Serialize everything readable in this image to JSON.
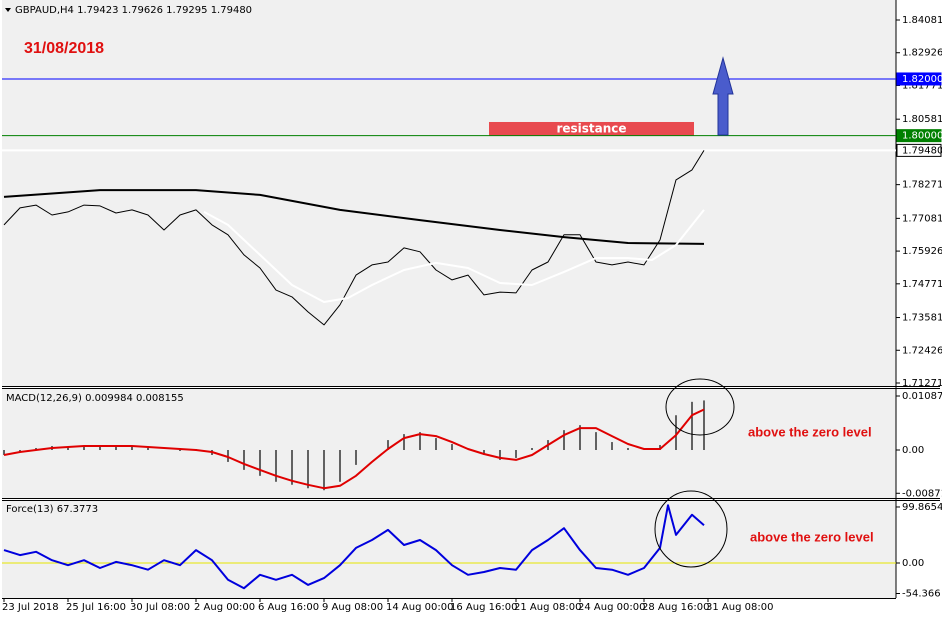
{
  "chart_data": [
    {
      "type": "line",
      "title": "GBPAUD,H4 1.79423 1.79626 1.79295 1.79480",
      "date_label": "31/08/2018",
      "xlim": [
        -0.5,
        223
      ],
      "ylim": [
        1.71165,
        1.84787
      ],
      "yticks": [
        1.84081,
        1.82926,
        1.81771,
        1.80581,
        1.78271,
        1.77081,
        1.75926,
        1.74771,
        1.73581,
        1.72426,
        1.71271
      ],
      "levels": [
        {
          "value": 1.82,
          "label": "1.82000",
          "color": "#0000ff"
        },
        {
          "value": 1.8,
          "label": "1.80000",
          "color": "#008000"
        },
        {
          "value": 1.7948,
          "label": "1.79480",
          "color": "#ffffff"
        }
      ],
      "resistance_zone": {
        "label": "resistance",
        "color": "#e84a4f",
        "xlim": [
          121.25,
          172.5
        ],
        "ylim": [
          1.8,
          1.80482
        ]
      },
      "series": [
        {
          "style": "line",
          "color": "#000000",
          "width": 1,
          "x": [
            0,
            4,
            8,
            12,
            16,
            20,
            24,
            28,
            32,
            36,
            40,
            44,
            48,
            52,
            56,
            60,
            64,
            68,
            72,
            76,
            80,
            84,
            88,
            92,
            96,
            100,
            104,
            108,
            112,
            116,
            120,
            124,
            128,
            132,
            136,
            140,
            144,
            148,
            152,
            156,
            160,
            164,
            168,
            172,
            175
          ],
          "values": [
            1.7685,
            1.7745,
            1.7755,
            1.772,
            1.7731,
            1.7755,
            1.7752,
            1.7727,
            1.7738,
            1.772,
            1.7667,
            1.772,
            1.7738,
            1.7685,
            1.765,
            1.7579,
            1.7533,
            1.7455,
            1.7431,
            1.7378,
            1.7332,
            1.7403,
            1.7508,
            1.7544,
            1.7554,
            1.7604,
            1.759,
            1.7526,
            1.7491,
            1.7508,
            1.7438,
            1.7448,
            1.7445,
            1.7526,
            1.7554,
            1.765,
            1.765,
            1.7554,
            1.7544,
            1.7554,
            1.7544,
            1.7632,
            1.7844,
            1.7879,
            1.7948
          ]
        },
        {
          "style": "line",
          "color": "#000000",
          "width": 2,
          "x": [
            0,
            24,
            48,
            64,
            84,
            104,
            124,
            140,
            156,
            175
          ],
          "values": [
            1.7784,
            1.7808,
            1.7808,
            1.7791,
            1.7738,
            1.7702,
            1.7667,
            1.7642,
            1.7621,
            1.7618
          ]
        },
        {
          "style": "line",
          "color": "#ffffff",
          "width": 2,
          "x": [
            50,
            56,
            64,
            72,
            80,
            86,
            92,
            100,
            108,
            116,
            124,
            132,
            140,
            148,
            156,
            162,
            168,
            175
          ],
          "values": [
            1.7731,
            1.7685,
            1.7579,
            1.7473,
            1.7413,
            1.7427,
            1.7473,
            1.7526,
            1.7551,
            1.7533,
            1.748,
            1.7473,
            1.7519,
            1.7568,
            1.7568,
            1.7561,
            1.7614,
            1.7738
          ]
        }
      ]
    },
    {
      "type": "combo",
      "title": "MACD(12,26,9) 0.009984 0.008155",
      "annotation": "above the zero level",
      "xlim": [
        -0.5,
        223
      ],
      "ylim": [
        -0.009666,
        0.012485
      ],
      "yticks": [
        0.010874,
        {
          "value": 0,
          "label": "0.00"
        },
        -0.008715
      ],
      "series": [
        {
          "style": "histogram",
          "color": "#333333",
          "width": 1.5,
          "x": [
            0,
            4,
            8,
            12,
            16,
            20,
            24,
            28,
            32,
            36,
            40,
            44,
            48,
            52,
            56,
            60,
            64,
            68,
            72,
            76,
            80,
            84,
            88,
            92,
            96,
            100,
            104,
            108,
            112,
            116,
            120,
            124,
            128,
            132,
            136,
            140,
            144,
            148,
            152,
            156,
            160,
            164,
            168,
            172,
            175
          ],
          "values": [
            -0.001,
            -0.0004,
            0.0004,
            0.0008,
            0.0006,
            0.0008,
            0.0008,
            0.0006,
            0.0008,
            0.0004,
            0,
            -0.0002,
            0.0002,
            -0.001,
            -0.0024,
            -0.004,
            -0.0052,
            -0.0064,
            -0.007,
            -0.0077,
            -0.0081,
            -0.0064,
            -0.003,
            0,
            0.002,
            0.0032,
            0.0036,
            0.0024,
            0.0012,
            0,
            -0.001,
            -0.002,
            -0.0016,
            0.0004,
            0.002,
            0.004,
            0.005,
            0.0036,
            0.0016,
            0.0004,
            0,
            0.001,
            0.007,
            0.0097,
            0.009984
          ]
        },
        {
          "style": "line",
          "color": "#e00000",
          "width": 2,
          "x": [
            0,
            4,
            8,
            12,
            16,
            20,
            24,
            28,
            32,
            36,
            40,
            44,
            48,
            52,
            56,
            60,
            64,
            68,
            72,
            76,
            80,
            84,
            88,
            92,
            96,
            100,
            104,
            108,
            112,
            116,
            120,
            124,
            128,
            132,
            136,
            140,
            144,
            148,
            152,
            156,
            160,
            164,
            168,
            172,
            175
          ],
          "values": [
            -0.001,
            -0.0004,
            0,
            0.0004,
            0.0006,
            0.0008,
            0.0008,
            0.0008,
            0.0008,
            0.0006,
            0.0004,
            0.0002,
            0,
            -0.0004,
            -0.0014,
            -0.0028,
            -0.004,
            -0.0052,
            -0.0062,
            -0.007,
            -0.0077,
            -0.0072,
            -0.0052,
            -0.0024,
            0.0002,
            0.0024,
            0.0032,
            0.0028,
            0.0016,
            0.0002,
            -0.0008,
            -0.0016,
            -0.002,
            -0.001,
            0.001,
            0.003,
            0.0044,
            0.0044,
            0.0028,
            0.0012,
            0.0002,
            0.0002,
            0.003,
            0.007,
            0.008155
          ]
        }
      ]
    },
    {
      "type": "line",
      "title": "Force(13) 67.3773",
      "annotation": "above the zero level",
      "xlim": [
        -0.5,
        223
      ],
      "ylim": [
        -62.4,
        112.3
      ],
      "yticks": [
        99.8654,
        {
          "value": 0,
          "label": "0.00"
        },
        -54.366
      ],
      "xticks": [
        {
          "value": 0,
          "label": "23 Jul 2018"
        },
        {
          "value": 16,
          "label": "25 Jul 16:00"
        },
        {
          "value": 32,
          "label": "30 Jul 08:00"
        },
        {
          "value": 48,
          "label": "2 Aug 00:00"
        },
        {
          "value": 64,
          "label": "6 Aug 16:00"
        },
        {
          "value": 80,
          "label": "9 Aug 08:00"
        },
        {
          "value": 96,
          "label": "14 Aug 00:00"
        },
        {
          "value": 112,
          "label": "16 Aug 16:00"
        },
        {
          "value": 128,
          "label": "21 Aug 08:00"
        },
        {
          "value": 144,
          "label": "24 Aug 00:00"
        },
        {
          "value": 160,
          "label": "28 Aug 16:00"
        },
        {
          "value": 176,
          "label": "31 Aug 08:00"
        }
      ],
      "levels": [
        {
          "value": 0,
          "color": "#e6e600"
        }
      ],
      "series": [
        {
          "style": "line",
          "color": "#0000dd",
          "width": 2,
          "x": [
            0,
            4,
            8,
            12,
            16,
            20,
            24,
            28,
            32,
            36,
            40,
            44,
            48,
            52,
            56,
            60,
            64,
            68,
            72,
            76,
            80,
            84,
            88,
            92,
            96,
            100,
            104,
            108,
            112,
            116,
            120,
            124,
            128,
            132,
            136,
            140,
            144,
            148,
            152,
            156,
            160,
            164,
            166,
            168,
            172,
            175
          ],
          "values": [
            23,
            14,
            20,
            5,
            -4,
            5,
            -9,
            2,
            -4,
            -12,
            5,
            -4,
            23,
            5,
            -30,
            -45,
            -21,
            -30,
            -21,
            -39,
            -27,
            -4,
            27,
            41,
            59,
            32,
            41,
            23,
            -4,
            -21,
            -16,
            -9,
            -12,
            23,
            41,
            62,
            23,
            -9,
            -12,
            -21,
            -9,
            27,
            103,
            50,
            86,
            67.3773
          ]
        }
      ]
    }
  ]
}
